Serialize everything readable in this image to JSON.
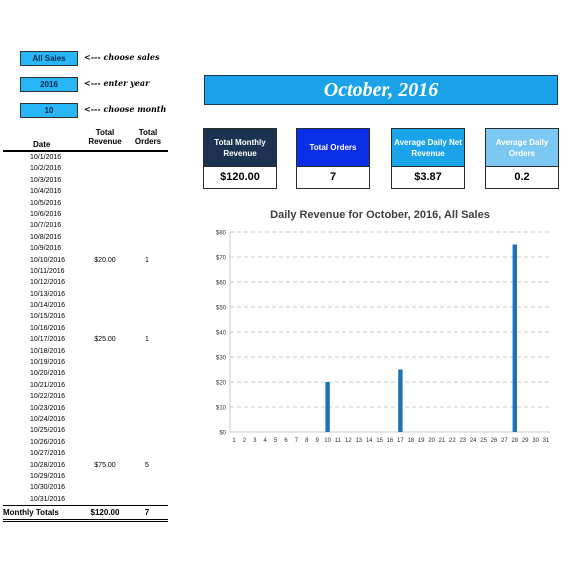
{
  "controls": {
    "sales_value": "All Sales",
    "sales_note": "<--- choose sales",
    "year_value": "2016",
    "year_note": "<--- enter year",
    "month_value": "10",
    "month_note": "<--- choose month"
  },
  "header": {
    "title": "October, 2016"
  },
  "kpis": [
    {
      "label": "Total Monthly Revenue",
      "value": "$120.00",
      "bg": "#1b3350",
      "fg": "#ffffff"
    },
    {
      "label": "Total Orders",
      "value": "7",
      "bg": "#0a2ee6",
      "fg": "#ffffff"
    },
    {
      "label": "Average Daily Net Revenue",
      "value": "$3.87",
      "bg": "#1aa3e8",
      "fg": "#ffffff"
    },
    {
      "label": "Average Daily Orders",
      "value": "0.2",
      "bg": "#7cc8f2",
      "fg": "#ffffff"
    }
  ],
  "table": {
    "headers": {
      "date": "Date",
      "revenue": "Total Revenue",
      "orders": "Total Orders"
    },
    "rows": [
      {
        "date": "10/1/2016",
        "revenue": "",
        "orders": ""
      },
      {
        "date": "10/2/2016",
        "revenue": "",
        "orders": ""
      },
      {
        "date": "10/3/2016",
        "revenue": "",
        "orders": ""
      },
      {
        "date": "10/4/2016",
        "revenue": "",
        "orders": ""
      },
      {
        "date": "10/5/2016",
        "revenue": "",
        "orders": ""
      },
      {
        "date": "10/6/2016",
        "revenue": "",
        "orders": ""
      },
      {
        "date": "10/7/2016",
        "revenue": "",
        "orders": ""
      },
      {
        "date": "10/8/2016",
        "revenue": "",
        "orders": ""
      },
      {
        "date": "10/9/2016",
        "revenue": "",
        "orders": ""
      },
      {
        "date": "10/10/2016",
        "revenue": "$20.00",
        "orders": "1"
      },
      {
        "date": "10/11/2016",
        "revenue": "",
        "orders": ""
      },
      {
        "date": "10/12/2016",
        "revenue": "",
        "orders": ""
      },
      {
        "date": "10/13/2016",
        "revenue": "",
        "orders": ""
      },
      {
        "date": "10/14/2016",
        "revenue": "",
        "orders": ""
      },
      {
        "date": "10/15/2016",
        "revenue": "",
        "orders": ""
      },
      {
        "date": "10/16/2016",
        "revenue": "",
        "orders": ""
      },
      {
        "date": "10/17/2016",
        "revenue": "$25.00",
        "orders": "1"
      },
      {
        "date": "10/18/2016",
        "revenue": "",
        "orders": ""
      },
      {
        "date": "10/19/2016",
        "revenue": "",
        "orders": ""
      },
      {
        "date": "10/20/2016",
        "revenue": "",
        "orders": ""
      },
      {
        "date": "10/21/2016",
        "revenue": "",
        "orders": ""
      },
      {
        "date": "10/22/2016",
        "revenue": "",
        "orders": ""
      },
      {
        "date": "10/23/2016",
        "revenue": "",
        "orders": ""
      },
      {
        "date": "10/24/2016",
        "revenue": "",
        "orders": ""
      },
      {
        "date": "10/25/2016",
        "revenue": "",
        "orders": ""
      },
      {
        "date": "10/26/2016",
        "revenue": "",
        "orders": ""
      },
      {
        "date": "10/27/2016",
        "revenue": "",
        "orders": ""
      },
      {
        "date": "10/28/2016",
        "revenue": "$75.00",
        "orders": "5"
      },
      {
        "date": "10/29/2016",
        "revenue": "",
        "orders": ""
      },
      {
        "date": "10/30/2016",
        "revenue": "",
        "orders": ""
      },
      {
        "date": "10/31/2016",
        "revenue": "",
        "orders": ""
      }
    ],
    "totals": {
      "label": "Monthly Totals",
      "revenue": "$120.00",
      "orders": "7"
    }
  },
  "chart_data": {
    "type": "bar",
    "title": "Daily Revenue for October, 2016, All Sales",
    "xlabel": "",
    "ylabel": "",
    "categories": [
      "1",
      "2",
      "3",
      "4",
      "5",
      "6",
      "7",
      "8",
      "9",
      "10",
      "11",
      "12",
      "13",
      "14",
      "15",
      "16",
      "17",
      "18",
      "19",
      "20",
      "21",
      "22",
      "23",
      "24",
      "25",
      "26",
      "27",
      "28",
      "29",
      "30",
      "31"
    ],
    "values": [
      0,
      0,
      0,
      0,
      0,
      0,
      0,
      0,
      0,
      20,
      0,
      0,
      0,
      0,
      0,
      0,
      25,
      0,
      0,
      0,
      0,
      0,
      0,
      0,
      0,
      0,
      0,
      75,
      0,
      0,
      0
    ],
    "ylim": [
      0,
      80
    ],
    "yticks": [
      "$0",
      "$10",
      "$20",
      "$30",
      "$40",
      "$50",
      "$60",
      "$70",
      "$80"
    ],
    "grid": true,
    "bar_color": "#1a73b8"
  }
}
